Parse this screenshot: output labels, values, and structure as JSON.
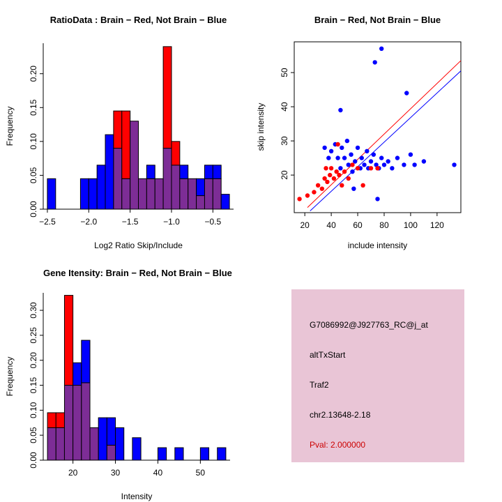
{
  "figure": {
    "background": "#FFFFFF"
  },
  "chart_data": [
    {
      "type": "bar",
      "title": "RatioData : Brain − Red, Not Brain − Blue",
      "xlabel": "Log2 Ratio Skip/Include",
      "ylabel": "Frequency",
      "grid": false,
      "xlim": [
        -2.55,
        -0.25
      ],
      "ylim": [
        0,
        0.245
      ],
      "xticks": {
        "values": [
          -2.5,
          -2.0,
          -1.5,
          -1.0,
          -0.5
        ],
        "labels": [
          "−2.5",
          "−2.0",
          "−1.5",
          "−1.0",
          "−0.5"
        ]
      },
      "yticks": {
        "values": [
          0,
          0.05,
          0.1,
          0.15,
          0.2
        ],
        "labels": [
          "0.00",
          "0.05",
          "0.10",
          "0.15",
          "0.20"
        ]
      },
      "bin_start": -2.5,
      "bin_width": 0.1,
      "overlap_color": "#7D2D96",
      "series": [
        {
          "id": "not-brain-blue",
          "name": "Not Brain",
          "color": "#0000FF",
          "values": [
            0.045,
            0,
            0,
            0,
            0.045,
            0.045,
            0.065,
            0.11,
            0.09,
            0.045,
            0.13,
            0.045,
            0.065,
            0.045,
            0.09,
            0.065,
            0.065,
            0.045,
            0.045,
            0.065,
            0.065,
            0.022
          ]
        },
        {
          "id": "brain-red",
          "name": "Brain",
          "color": "#FF0000",
          "values": [
            0,
            0,
            0,
            0,
            0,
            0,
            0,
            0,
            0.145,
            0.145,
            0.13,
            0.045,
            0.045,
            0.045,
            0.24,
            0.1,
            0.045,
            0.045,
            0.02,
            0.045,
            0.045,
            0
          ]
        }
      ]
    },
    {
      "type": "scatter",
      "title": "Brain − Red, Not Brain − Blue",
      "xlabel": "include intensity",
      "ylabel": "skip intensity",
      "grid": false,
      "xlim": [
        12,
        138
      ],
      "ylim": [
        9,
        59
      ],
      "xticks": {
        "values": [
          20,
          40,
          60,
          80,
          100,
          120
        ],
        "labels": [
          "20",
          "40",
          "60",
          "80",
          "100",
          "120"
        ]
      },
      "yticks": {
        "values": [
          20,
          30,
          40,
          50
        ],
        "labels": [
          "20",
          "30",
          "40",
          "50"
        ]
      },
      "series": [
        {
          "id": "not-brain-blue",
          "name": "Not Brain",
          "color": "#0000FF",
          "points": [
            [
              47,
              39
            ],
            [
              78,
              57
            ],
            [
              73,
              53
            ],
            [
              97,
              44
            ],
            [
              35,
              28
            ],
            [
              38,
              25
            ],
            [
              40,
              27
            ],
            [
              43,
              29
            ],
            [
              45,
              25
            ],
            [
              47,
              22
            ],
            [
              48,
              28
            ],
            [
              50,
              25
            ],
            [
              52,
              30
            ],
            [
              53,
              23
            ],
            [
              55,
              26
            ],
            [
              56,
              21
            ],
            [
              58,
              24
            ],
            [
              60,
              28
            ],
            [
              62,
              22
            ],
            [
              63,
              25
            ],
            [
              65,
              23
            ],
            [
              67,
              27
            ],
            [
              68,
              22
            ],
            [
              70,
              24
            ],
            [
              72,
              26
            ],
            [
              74,
              23
            ],
            [
              76,
              22
            ],
            [
              78,
              25
            ],
            [
              80,
              23
            ],
            [
              83,
              24
            ],
            [
              86,
              22
            ],
            [
              90,
              25
            ],
            [
              95,
              23
            ],
            [
              100,
              26
            ],
            [
              103,
              23
            ],
            [
              110,
              24
            ],
            [
              133,
              23
            ],
            [
              75,
              13
            ],
            [
              57,
              16
            ]
          ]
        },
        {
          "id": "brain-red",
          "name": "Brain",
          "color": "#FF0000",
          "points": [
            [
              16,
              13
            ],
            [
              22,
              14
            ],
            [
              27,
              15
            ],
            [
              30,
              17
            ],
            [
              33,
              16
            ],
            [
              35,
              19
            ],
            [
              36,
              22
            ],
            [
              37,
              18
            ],
            [
              39,
              20
            ],
            [
              40,
              22
            ],
            [
              42,
              19
            ],
            [
              44,
              21
            ],
            [
              45,
              29
            ],
            [
              46,
              20
            ],
            [
              48,
              17
            ],
            [
              50,
              21
            ],
            [
              53,
              19
            ],
            [
              56,
              23
            ],
            [
              60,
              22
            ],
            [
              64,
              17
            ],
            [
              70,
              22
            ],
            [
              75,
              22
            ]
          ]
        }
      ],
      "lines": [
        {
          "id": "red",
          "color": "#FF0000",
          "from": [
            22,
            10.5
          ],
          "to": [
            138,
            53.5
          ]
        },
        {
          "id": "blue",
          "color": "#0000FF",
          "from": [
            24,
            9.5
          ],
          "to": [
            138,
            50.5
          ]
        }
      ]
    },
    {
      "type": "bar",
      "title": "Gene Itensity: Brain − Red, Not Brain − Blue",
      "xlabel": "Intensity",
      "ylabel": "Frequency",
      "grid": false,
      "xlim": [
        13,
        57
      ],
      "ylim": [
        0,
        0.335
      ],
      "xticks": {
        "values": [
          20,
          30,
          40,
          50
        ],
        "labels": [
          "20",
          "30",
          "40",
          "50"
        ]
      },
      "yticks": {
        "values": [
          0,
          0.05,
          0.1,
          0.15,
          0.2,
          0.25,
          0.3
        ],
        "labels": [
          "0.00",
          "0.05",
          "0.10",
          "0.15",
          "0.20",
          "0.25",
          "0.30"
        ]
      },
      "bin_start": 14,
      "bin_width": 2,
      "overlap_color": "#7D2D96",
      "series": [
        {
          "id": "not-brain-blue",
          "name": "Not Brain",
          "color": "#0000FF",
          "values": [
            0.065,
            0.065,
            0.15,
            0.195,
            0.24,
            0.065,
            0.085,
            0.085,
            0.065,
            0,
            0.045,
            0,
            0,
            0.025,
            0,
            0.025,
            0,
            0,
            0.025,
            0,
            0.025
          ]
        },
        {
          "id": "brain-red",
          "name": "Brain",
          "color": "#FF0000",
          "values": [
            0.095,
            0.095,
            0.33,
            0.15,
            0.155,
            0.065,
            0,
            0.03,
            0,
            0,
            0,
            0,
            0,
            0,
            0,
            0,
            0,
            0,
            0,
            0,
            0
          ]
        }
      ]
    }
  ],
  "info_panel": {
    "bg_color": "#E9C5D6",
    "lines": [
      {
        "text": "G7086992@J927763_RC@j_at",
        "color": "#000000"
      },
      {
        "text": "altTxStart",
        "color": "#000000"
      },
      {
        "text": "Traf2",
        "color": "#000000"
      },
      {
        "text": "chr2.13648-2.18",
        "color": "#000000"
      },
      {
        "text": "Pval: 2.000000",
        "color": "#CC0000"
      }
    ]
  }
}
